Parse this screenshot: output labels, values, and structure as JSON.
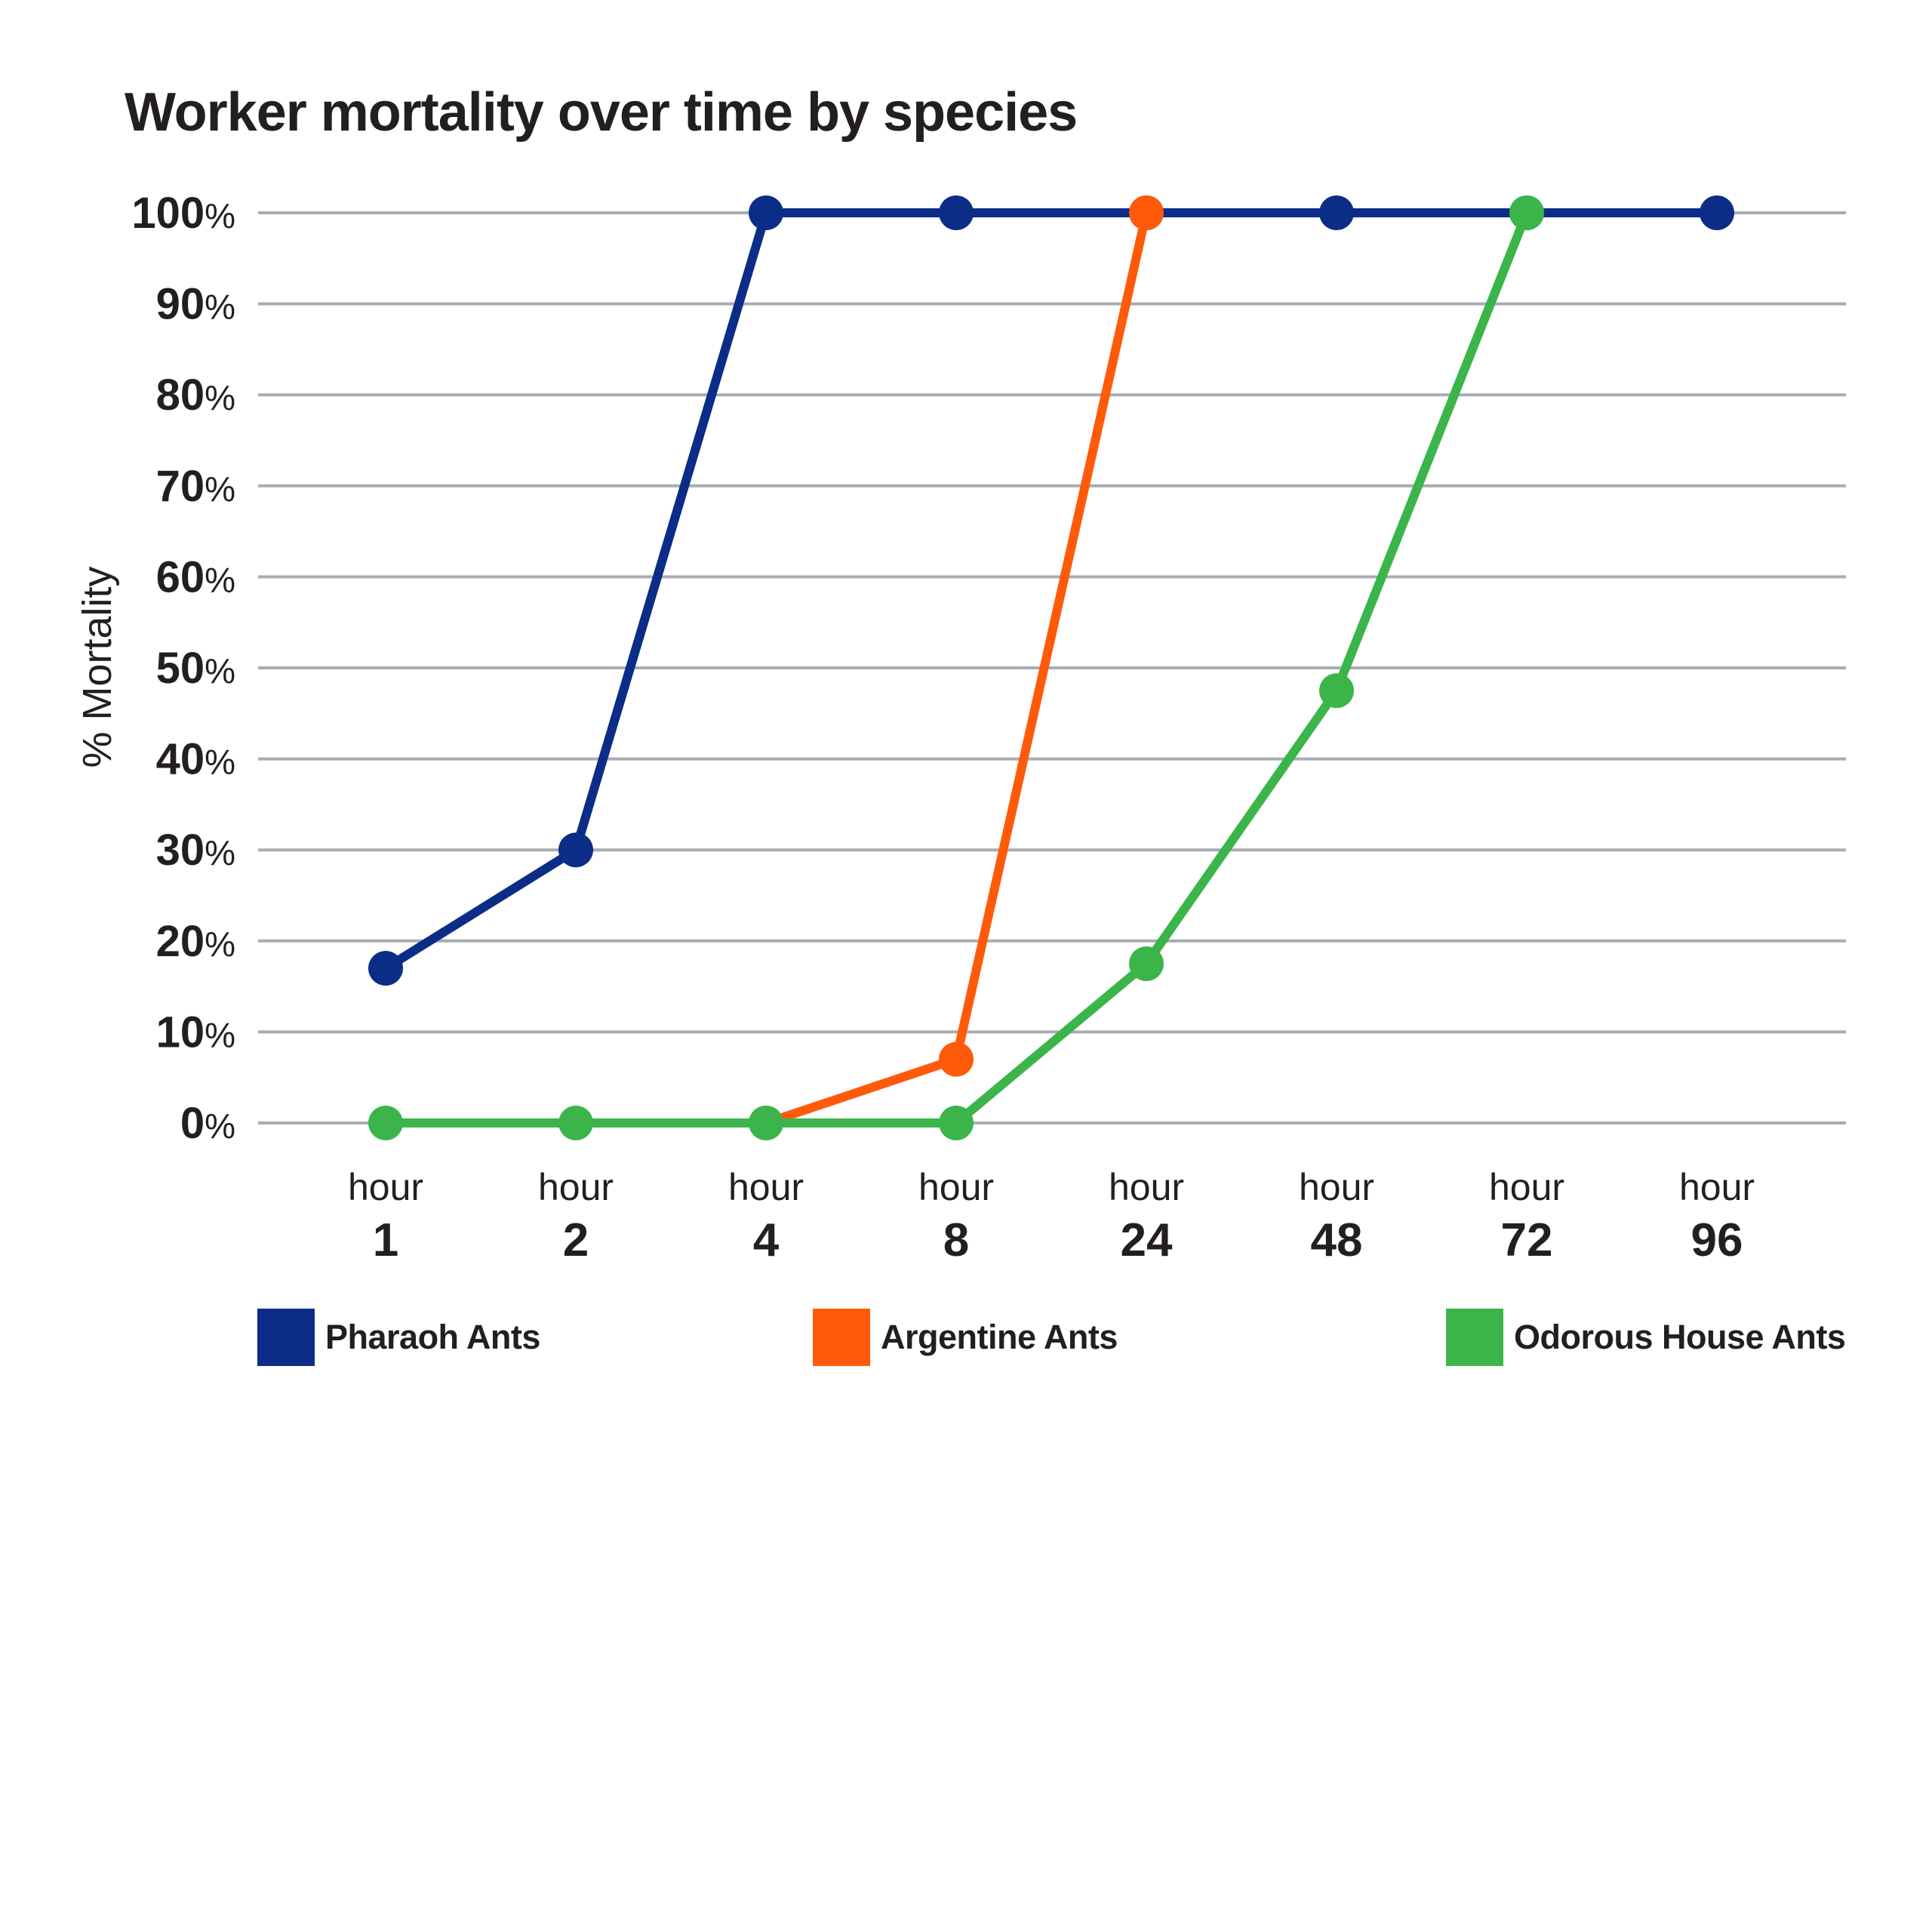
{
  "chart_data": {
    "type": "line",
    "title": "Worker mortality over time by species",
    "ylabel": "% Mortality",
    "xlabel": "",
    "categories": [
      {
        "top": "hour",
        "bottom": "1"
      },
      {
        "top": "hour",
        "bottom": "2"
      },
      {
        "top": "hour",
        "bottom": "4"
      },
      {
        "top": "hour",
        "bottom": "8"
      },
      {
        "top": "hour",
        "bottom": "24"
      },
      {
        "top": "hour",
        "bottom": "48"
      },
      {
        "top": "hour",
        "bottom": "72"
      },
      {
        "top": "hour",
        "bottom": "96"
      }
    ],
    "yticks": [
      {
        "num": "100",
        "unit": "%",
        "value": 100
      },
      {
        "num": "90",
        "unit": "%",
        "value": 90
      },
      {
        "num": "80",
        "unit": "%",
        "value": 80
      },
      {
        "num": "70",
        "unit": "%",
        "value": 70
      },
      {
        "num": "60",
        "unit": "%",
        "value": 60
      },
      {
        "num": "50",
        "unit": "%",
        "value": 50
      },
      {
        "num": "40",
        "unit": "%",
        "value": 40
      },
      {
        "num": "30",
        "unit": "%",
        "value": 30
      },
      {
        "num": "20",
        "unit": "%",
        "value": 20
      },
      {
        "num": "10",
        "unit": "%",
        "value": 10
      },
      {
        "num": "0",
        "unit": "%",
        "value": 0
      }
    ],
    "ylim": [
      0,
      100
    ],
    "grid": true,
    "legend_position": "bottom",
    "series": [
      {
        "name": "Pharaoh Ants",
        "color": "#0b2d87",
        "values": [
          17,
          30,
          100,
          100,
          100,
          100,
          100,
          100
        ]
      },
      {
        "name": "Argentine Ants",
        "color": "#ff5a0a",
        "values": [
          null,
          null,
          0,
          7,
          100,
          null,
          null,
          null
        ]
      },
      {
        "name": "Odorous House Ants",
        "color": "#3bb54a",
        "values": [
          0,
          0,
          0,
          0,
          17.5,
          47.5,
          100,
          null
        ]
      }
    ],
    "colors": {
      "grid": "#a7adb2",
      "text": "#231f20"
    }
  }
}
